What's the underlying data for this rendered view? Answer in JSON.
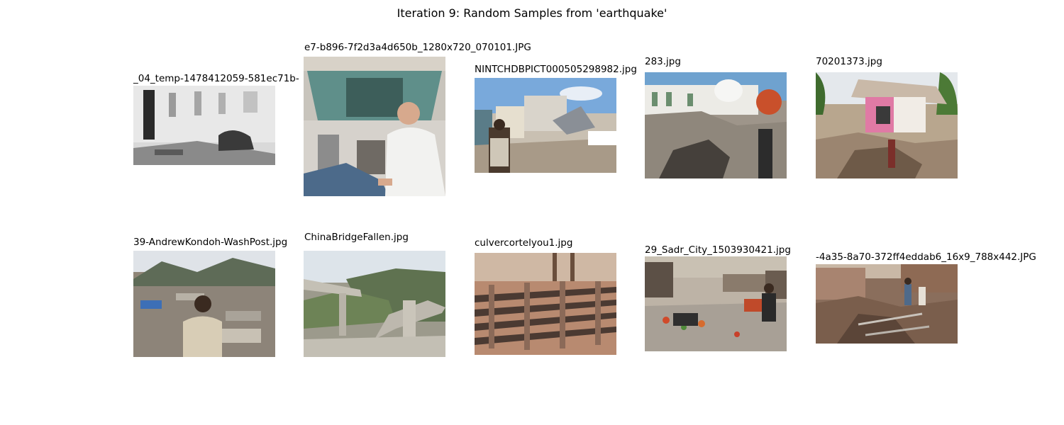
{
  "figure": {
    "title": "Iteration 9: Random Samples from 'earthquake'"
  },
  "samples": [
    {
      "caption": "_04_temp-1478412059-581ec71b-"
    },
    {
      "caption": "e7-b896-7f2d3a4d650b_1280x720_070101.JPG"
    },
    {
      "caption": "NINTCHDBPICT000505298982.jpg"
    },
    {
      "caption": "283.jpg"
    },
    {
      "caption": "70201373.jpg"
    },
    {
      "caption": "39-AndrewKondoh-WashPost.jpg"
    },
    {
      "caption": "ChinaBridgeFallen.jpg"
    },
    {
      "caption": "culvercortelyou1.jpg"
    },
    {
      "caption": "29_Sadr_City_1503930421.jpg"
    },
    {
      "caption": "-4a35-8a70-372ff4eddab6_16x9_788x442.JPG"
    }
  ]
}
